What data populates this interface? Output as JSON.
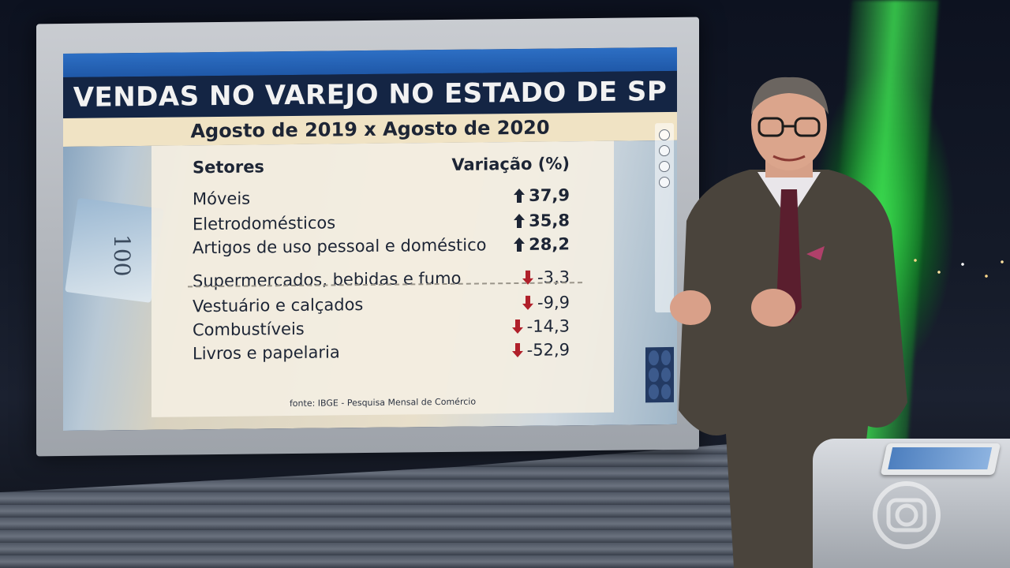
{
  "graphic": {
    "title": "VENDAS NO VAREJO NO ESTADO DE SP",
    "subtitle": "Agosto de 2019 x Agosto de 2020",
    "column_sector": "Setores",
    "column_variation": "Variação (%)",
    "rows": [
      {
        "label": "Móveis",
        "value": "37,9",
        "direction": "up"
      },
      {
        "label": "Eletrodomésticos",
        "value": "35,8",
        "direction": "up"
      },
      {
        "label": "Artigos de uso pessoal e doméstico",
        "value": "28,2",
        "direction": "up"
      },
      {
        "label": "Supermercados, bebidas e fumo",
        "value": "-3,3",
        "direction": "down"
      },
      {
        "label": "Vestuário e calçados",
        "value": "-9,9",
        "direction": "down"
      },
      {
        "label": "Combustíveis",
        "value": "-14,3",
        "direction": "down"
      },
      {
        "label": "Livros e papelaria",
        "value": "-52,9",
        "direction": "down"
      }
    ],
    "source": "fonte:  IBGE - Pesquisa Mensal de Comércio",
    "bill_number": "100"
  },
  "colors": {
    "up_arrow": "#1d2535",
    "down_arrow": "#b0202a",
    "title_bg": "#142544",
    "subtitle_bg": "#f0e3c4"
  },
  "icons": {
    "up": "arrow-up-icon",
    "down": "arrow-down-icon",
    "broadcaster": "globo-logo-icon"
  }
}
